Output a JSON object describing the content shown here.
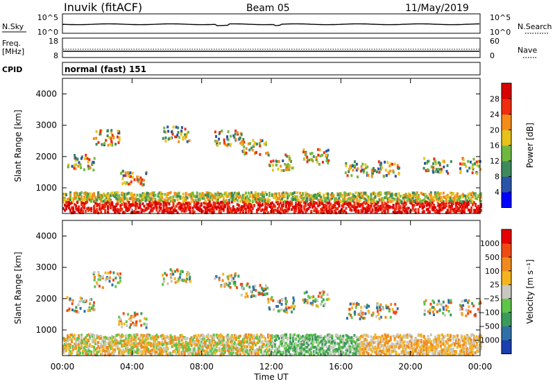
{
  "header": {
    "station": "Inuvik (fitACF)",
    "beam": "Beam 05",
    "date": "11/May/2019"
  },
  "noise_panel": {
    "left_label": "N.Sky",
    "right_label": "N.Search",
    "left_ticks": [
      "10^5",
      "10^0"
    ],
    "right_ticks": [
      "10^5",
      "10^0"
    ]
  },
  "freq_panel": {
    "left_label_1": "Freq.",
    "left_label_2": "[MHz]",
    "right_label": "Nave",
    "left_ticks": [
      "18",
      "8"
    ],
    "right_ticks": [
      "60",
      "0"
    ]
  },
  "cpid": {
    "label": "CPID",
    "value": "normal (fast) 151"
  },
  "chart_data": [
    {
      "type": "heatmap",
      "title": "Power",
      "ylabel": "Slant Range [km]",
      "xlabel": "",
      "y_ticks": [
        "1000",
        "2000",
        "3000",
        "4000"
      ],
      "ylim": [
        180,
        4500
      ],
      "x_ticks": [
        "00:00",
        "04:00",
        "08:00",
        "12:00",
        "16:00",
        "20:00",
        "00:00"
      ],
      "colorbar_label": "Power [dB]",
      "colorbar_ticks": [
        "4",
        "8",
        "12",
        "16",
        "20",
        "24",
        "28"
      ],
      "colorbar_colors": [
        "#0000ff",
        "#2a54a8",
        "#3d8a5c",
        "#6fb840",
        "#e6c21a",
        "#f58c1a",
        "#f02d0f",
        "#d90000"
      ]
    },
    {
      "type": "heatmap",
      "title": "Velocity",
      "ylabel": "Slant Range [km]",
      "xlabel": "Time UT",
      "y_ticks": [
        "1000",
        "2000",
        "3000",
        "4000"
      ],
      "ylim": [
        180,
        4500
      ],
      "x_ticks": [
        "00:00",
        "04:00",
        "08:00",
        "12:00",
        "16:00",
        "20:00",
        "00:00"
      ],
      "colorbar_label": "Velocity [m s⁻¹]",
      "colorbar_ticks": [
        "1000",
        "500",
        "100",
        "25",
        "−25",
        "−100",
        "−500",
        "−1000"
      ],
      "colorbar_colors": [
        "#1a3fb0",
        "#2f6fa8",
        "#3c9a5a",
        "#5ec44a",
        "#c8c8c0",
        "#f5b41e",
        "#f08a1e",
        "#f04a14",
        "#e60000"
      ]
    }
  ]
}
